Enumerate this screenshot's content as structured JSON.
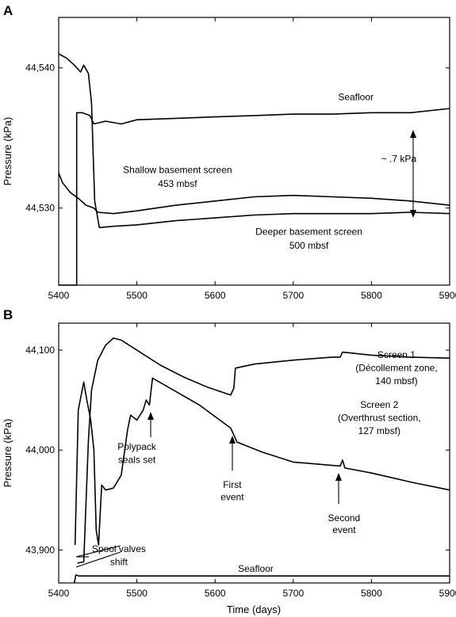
{
  "chart_data": [
    {
      "panel": "A",
      "type": "line",
      "ylabel": "Pressure (kPa)",
      "xlabel": "",
      "xlim": [
        5400,
        5900
      ],
      "ylim": [
        44524.5,
        44543.6
      ],
      "x_ticks": [
        5400,
        5500,
        5600,
        5700,
        5800,
        5900
      ],
      "x_tick_labels": [
        "5400",
        "5500",
        "5600",
        "5700",
        "5800",
        "5900"
      ],
      "y_ticks": [
        44530,
        44540
      ],
      "y_tick_labels": [
        "44,530",
        "44,540"
      ],
      "grid": false,
      "series": [
        {
          "name": "Seafloor",
          "x": [
            5400,
            5423,
            5423,
            5430,
            5440,
            5445,
            5460,
            5480,
            5500,
            5550,
            5600,
            5650,
            5700,
            5750,
            5800,
            5850,
            5900
          ],
          "y": [
            44524.5,
            44524.5,
            44536.8,
            44536.8,
            44536.6,
            44536.0,
            44536.2,
            44536.0,
            44536.3,
            44536.4,
            44536.5,
            44536.6,
            44536.7,
            44536.7,
            44536.8,
            44536.8,
            44537.1
          ]
        },
        {
          "name": "Shallow basement screen 453 mbsf",
          "x": [
            5400,
            5405,
            5415,
            5425,
            5435,
            5445,
            5450,
            5470,
            5500,
            5550,
            5600,
            5650,
            5700,
            5750,
            5800,
            5850,
            5900
          ],
          "y": [
            44532.5,
            44531.8,
            44531.1,
            44530.7,
            44530.2,
            44530.0,
            44529.7,
            44529.6,
            44529.8,
            44530.2,
            44530.5,
            44530.8,
            44530.9,
            44530.8,
            44530.7,
            44530.5,
            44530.2
          ]
        },
        {
          "name": "Deeper basement screen 500 mbsf",
          "x": [
            5400,
            5410,
            5420,
            5428,
            5432,
            5438,
            5442,
            5446,
            5452,
            5470,
            5500,
            5550,
            5600,
            5650,
            5700,
            5750,
            5800,
            5850,
            5900
          ],
          "y": [
            44541.0,
            44540.7,
            44540.2,
            44539.7,
            44540.2,
            44539.6,
            44537.5,
            44530.5,
            44528.6,
            44528.7,
            44528.8,
            44529.1,
            44529.3,
            44529.5,
            44529.6,
            44529.6,
            44529.6,
            44529.7,
            44529.6
          ]
        }
      ],
      "annotations": [
        {
          "text": "Seafloor",
          "x": 5780,
          "y": 44537.7
        },
        {
          "text": "~ .7 kPa",
          "x": 5835,
          "y": 44533.3
        },
        {
          "text": "Shallow basement screen",
          "x": 5552,
          "y": 44532.5
        },
        {
          "text": "453 mbsf",
          "x": 5552,
          "y": 44531.5
        },
        {
          "text": "Deeper basement screen",
          "x": 5720,
          "y": 44528.1
        },
        {
          "text": "500 mbsf",
          "x": 5720,
          "y": 44527.1
        }
      ]
    },
    {
      "panel": "B",
      "type": "line",
      "ylabel": "Pressure (kPa)",
      "xlabel": "Time (days)",
      "xlim": [
        5400,
        5900
      ],
      "ylim": [
        43867,
        44127
      ],
      "x_ticks": [
        5400,
        5500,
        5600,
        5700,
        5800,
        5900
      ],
      "x_tick_labels": [
        "5400",
        "5500",
        "5600",
        "5700",
        "5800",
        "5900"
      ],
      "y_ticks": [
        43900,
        44000,
        44100
      ],
      "y_tick_labels": [
        "43,900",
        "44,000",
        "44,100"
      ],
      "grid": false,
      "series": [
        {
          "name": "Screen 1",
          "x": [
            5424,
            5432,
            5438,
            5442,
            5450,
            5460,
            5470,
            5480,
            5500,
            5530,
            5560,
            5590,
            5620,
            5624,
            5626,
            5650,
            5700,
            5750,
            5760,
            5763,
            5800,
            5850,
            5900
          ],
          "y": [
            43887,
            43888,
            44010,
            44060,
            44090,
            44105,
            44112,
            44110,
            44100,
            44085,
            44073,
            44063,
            44055,
            44062,
            44082,
            44086,
            44090,
            44093,
            44093,
            44098,
            44095,
            44093,
            44092
          ]
        },
        {
          "name": "Screen 2",
          "x": [
            5421,
            5425,
            5432,
            5436,
            5441,
            5445,
            5448,
            5451,
            5455,
            5460,
            5470,
            5480,
            5488,
            5492,
            5500,
            5508,
            5512,
            5516,
            5520,
            5540,
            5580,
            5620,
            5624,
            5628,
            5660,
            5700,
            5760,
            5763,
            5766,
            5800,
            5850,
            5900
          ],
          "y": [
            43905,
            44040,
            44068,
            44050,
            44030,
            44000,
            43920,
            43905,
            43965,
            43960,
            43962,
            43975,
            44020,
            44035,
            44030,
            44040,
            44050,
            44045,
            44072,
            44063,
            44045,
            44022,
            44015,
            44008,
            43998,
            43988,
            43984,
            43990,
            43982,
            43977,
            43968,
            43960
          ]
        },
        {
          "name": "Seafloor",
          "x": [
            5420,
            5422,
            5426,
            5430,
            5450,
            5500,
            5600,
            5700,
            5800,
            5900
          ],
          "y": [
            43867,
            43875,
            43874,
            43874,
            43874,
            43874,
            43874,
            43874,
            43874,
            43874
          ]
        }
      ],
      "annotations": [
        {
          "text": "Polypack",
          "x": 5500,
          "y": 44000
        },
        {
          "text": "seals set",
          "x": 5500,
          "y": 43987
        },
        {
          "text": "First",
          "x": 5622,
          "y": 43962
        },
        {
          "text": "event",
          "x": 5622,
          "y": 43950
        },
        {
          "text": "Second",
          "x": 5765,
          "y": 43929
        },
        {
          "text": "event",
          "x": 5765,
          "y": 43917
        },
        {
          "text": "Screen 1",
          "x": 5832,
          "y": 44092
        },
        {
          "text": "(Décollement zone,",
          "x": 5832,
          "y": 44079
        },
        {
          "text": "140 mbsf)",
          "x": 5832,
          "y": 44066
        },
        {
          "text": "Screen 2",
          "x": 5810,
          "y": 44042
        },
        {
          "text": "(Overthrust section,",
          "x": 5810,
          "y": 44029
        },
        {
          "text": "127 mbsf)",
          "x": 5810,
          "y": 44016
        },
        {
          "text": "Spool valves",
          "x": 5477,
          "y": 43898
        },
        {
          "text": "shift",
          "x": 5477,
          "y": 43885
        },
        {
          "text": "Seafloor",
          "x": 5652,
          "y": 43878
        }
      ]
    }
  ],
  "panels": {
    "a_letter": "A",
    "b_letter": "B"
  }
}
